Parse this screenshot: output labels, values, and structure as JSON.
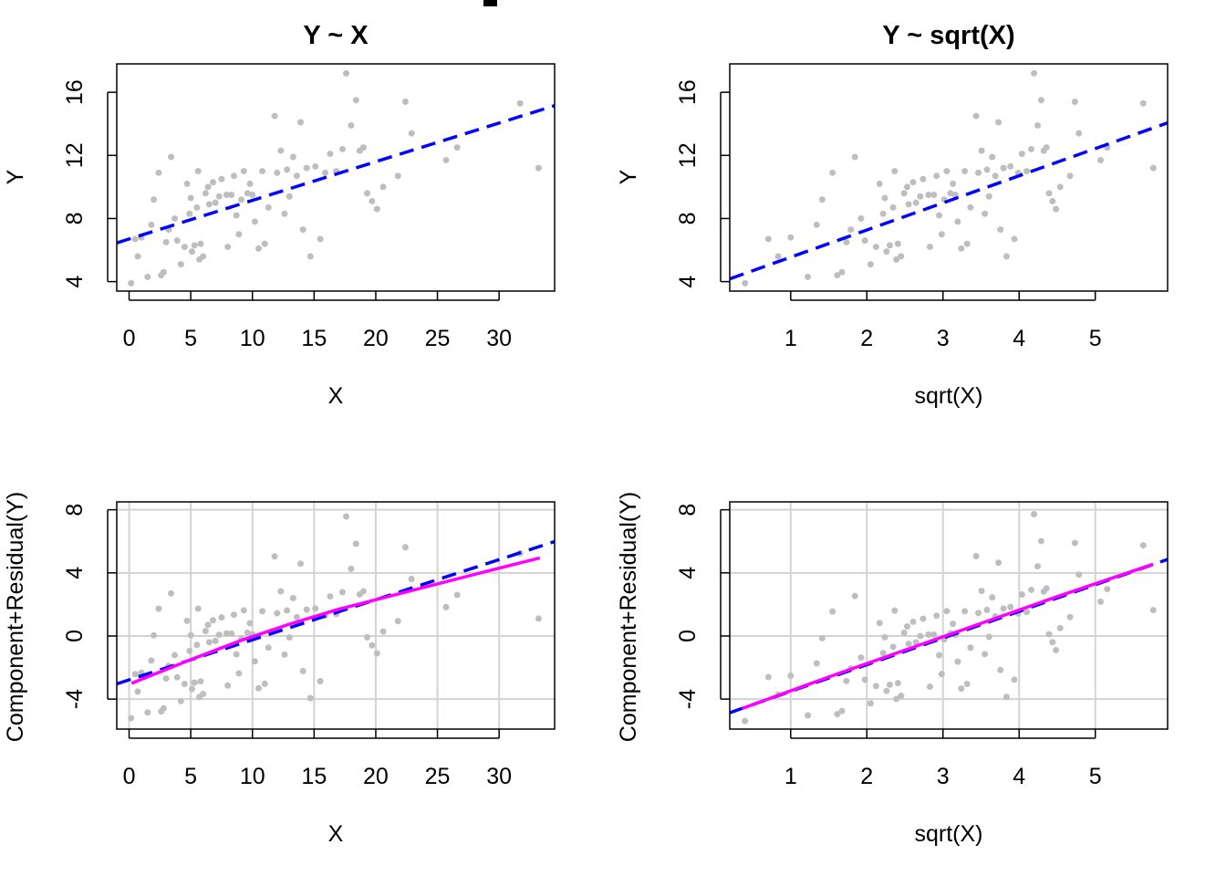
{
  "colors": {
    "points": "#bebebe",
    "fit_line": "#0000ff",
    "smooth_line": "#ff00ff",
    "grid": "#d3d3d3",
    "frame": "#000000"
  },
  "chart_data": [
    {
      "type": "scatter",
      "title": "Y ~ X",
      "xlabel": "X",
      "ylabel": "Y",
      "xlim": [
        -1,
        34.5
      ],
      "ylim": [
        3.4,
        17.8
      ],
      "xticks": [
        0,
        5,
        10,
        15,
        20,
        25,
        30
      ],
      "yticks": [
        4,
        8,
        12,
        16
      ],
      "grid": false,
      "fit_line": {
        "intercept": 6.7,
        "slope": 0.245,
        "style": "dashed"
      },
      "smooth_line": null,
      "points_ref": "scatter_xy"
    },
    {
      "type": "scatter",
      "title": "Y ~ sqrt(X)",
      "xlabel": "sqrt(X)",
      "ylabel": "Y",
      "xlim": [
        0.2,
        5.95
      ],
      "ylim": [
        3.4,
        17.8
      ],
      "xticks": [
        1,
        2,
        3,
        4,
        5
      ],
      "yticks": [
        4,
        8,
        12,
        16
      ],
      "grid": false,
      "fit_line": {
        "intercept": 3.83,
        "slope": 1.72,
        "style": "dashed"
      },
      "smooth_line": null,
      "points_ref": "scatter_sqrt"
    },
    {
      "type": "scatter",
      "title": "",
      "xlabel": "X",
      "ylabel": "Component+Residual(Y)",
      "xlim": [
        -1,
        34.5
      ],
      "ylim": [
        -5.9,
        8.5
      ],
      "xticks": [
        0,
        5,
        10,
        15,
        20,
        25,
        30
      ],
      "yticks": [
        -4,
        0,
        4,
        8
      ],
      "grid": true,
      "fit_line": {
        "intercept": -2.78,
        "slope": 0.254,
        "style": "dashed"
      },
      "smooth_line": {
        "x": [
          0.2,
          5,
          9,
          13,
          17,
          21,
          25,
          29,
          33.3
        ],
        "y": [
          -3.0,
          -1.5,
          -0.3,
          0.75,
          1.7,
          2.5,
          3.3,
          4.1,
          4.95
        ]
      },
      "points_ref": "cr_x"
    },
    {
      "type": "scatter",
      "title": "",
      "xlabel": "sqrt(X)",
      "ylabel": "Component+Residual(Y)",
      "xlim": [
        0.2,
        5.95
      ],
      "ylim": [
        -5.9,
        8.5
      ],
      "xticks": [
        1,
        2,
        3,
        4,
        5
      ],
      "yticks": [
        -4,
        0,
        4,
        8
      ],
      "grid": true,
      "fit_line": {
        "intercept": -5.2,
        "slope": 1.69,
        "style": "dashed"
      },
      "smooth_line": {
        "x": [
          0.36,
          1.5,
          2.5,
          3.5,
          4.5,
          5.76
        ],
        "y": [
          -4.6,
          -2.6,
          -0.9,
          0.8,
          2.5,
          4.55
        ]
      },
      "points_ref": "cr_sqrt"
    }
  ],
  "points": {
    "x": [
      0.16,
      0.5,
      0.7,
      1.0,
      1.5,
      1.8,
      2.0,
      2.4,
      2.6,
      2.8,
      3.0,
      3.2,
      3.4,
      3.7,
      3.9,
      4.2,
      4.5,
      4.7,
      4.9,
      5.0,
      5.1,
      5.3,
      5.5,
      5.6,
      5.7,
      5.8,
      6.0,
      6.2,
      6.4,
      6.5,
      6.8,
      7.0,
      7.3,
      7.5,
      7.9,
      8.0,
      8.3,
      8.5,
      8.7,
      8.9,
      9.1,
      9.3,
      9.6,
      9.8,
      10.0,
      10.2,
      10.5,
      10.8,
      11.0,
      11.3,
      11.8,
      12.0,
      12.3,
      12.6,
      12.8,
      13.0,
      13.3,
      13.6,
      13.9,
      14.1,
      14.4,
      14.7,
      15.1,
      15.5,
      15.9,
      16.3,
      16.8,
      17.3,
      17.6,
      18.0,
      18.4,
      18.7,
      19.0,
      19.3,
      19.7,
      20.1,
      20.6,
      21.8,
      22.4,
      22.9,
      25.7,
      26.6,
      31.7,
      33.2
    ],
    "y": [
      3.9,
      6.7,
      5.6,
      6.8,
      4.3,
      7.6,
      9.2,
      10.9,
      4.4,
      4.6,
      6.5,
      7.3,
      11.9,
      8.0,
      6.6,
      5.1,
      6.2,
      10.2,
      8.3,
      9.3,
      5.9,
      6.3,
      8.7,
      11.0,
      5.4,
      6.4,
      5.6,
      9.6,
      10.0,
      8.9,
      10.3,
      9.0,
      9.4,
      10.5,
      9.5,
      6.2,
      9.5,
      10.7,
      8.2,
      7.0,
      9.2,
      11.0,
      9.6,
      10.2,
      9.5,
      7.8,
      6.1,
      11.0,
      6.4,
      8.7,
      14.5,
      10.9,
      12.3,
      8.3,
      11.1,
      9.4,
      11.9,
      10.7,
      14.1,
      7.3,
      11.2,
      5.6,
      11.3,
      6.7,
      10.9,
      12.1,
      11.0,
      12.4,
      17.2,
      13.9,
      15.5,
      12.3,
      12.5,
      9.6,
      9.1,
      8.6,
      10.0,
      10.7,
      15.4,
      13.4,
      11.7,
      12.5,
      15.3,
      11.2
    ]
  }
}
